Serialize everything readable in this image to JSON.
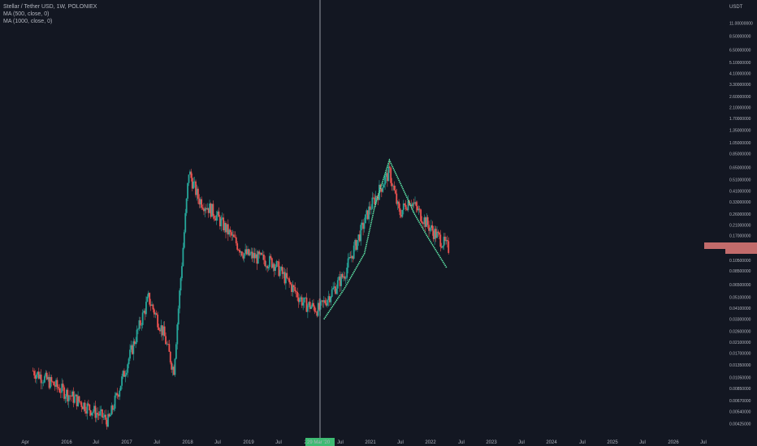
{
  "legend": {
    "symbol": "Stellar / Tether USD, 1W, POLONIEX",
    "ma1": "MA (500, close, 0)",
    "ma2": "MA (1000, close, 0)"
  },
  "price_axis": {
    "unit": "USDT",
    "ticks": [
      "11.00000000",
      "8.50000000",
      "6.50000000",
      "5.10000000",
      "4.10000000",
      "3.30000000",
      "2.60000000",
      "2.10000000",
      "1.70000000",
      "1.35000000",
      "1.05000000",
      "0.85000000",
      "0.65000000",
      "0.51000000",
      "0.41000000",
      "0.33000000",
      "0.26000000",
      "0.21000000",
      "0.17000000",
      "0.13500000",
      "0.10500000",
      "0.08500000",
      "0.06500000",
      "0.05100000",
      "0.04100000",
      "0.03300000",
      "0.02600000",
      "0.02100000",
      "0.01700000",
      "0.01350000",
      "0.01050000",
      "0.00850000",
      "0.00670000",
      "0.00540000",
      "0.00425000"
    ]
  },
  "time_axis": {
    "ticks": [
      "Apr",
      "2016",
      "Jul",
      "2017",
      "Jul",
      "2018",
      "Jul",
      "2019",
      "Jul",
      "2020",
      "Jul",
      "2021",
      "Jul",
      "2022",
      "Jul",
      "2023",
      "Jul",
      "2024",
      "Jul",
      "2025",
      "Jul",
      "2026",
      "Jul"
    ],
    "crosshair_label": "29 Mar '20"
  },
  "colors": {
    "background": "#131722",
    "up": "#26a69a",
    "down": "#ef5350",
    "ma": "#5ee6a8",
    "crosshair": "#9598a1"
  },
  "chart_data": {
    "type": "candlestick",
    "title": "Stellar / Tether USD, 1W, POLONIEX",
    "y_scale": "log",
    "ylim": [
      0.0039,
      13
    ],
    "x_range": [
      "2015-03",
      "2026-09"
    ],
    "series": [
      {
        "name": "MA (500, close, 0)",
        "type": "line",
        "points": [
          [
            "2020-03-30",
            0.033
          ],
          [
            "2020-08-01",
            0.06
          ],
          [
            "2020-12-01",
            0.12
          ],
          [
            "2021-02-01",
            0.3
          ],
          [
            "2021-05-01",
            0.75
          ],
          [
            "2021-07-15",
            0.45
          ],
          [
            "2021-10-01",
            0.26
          ],
          [
            "2021-12-15",
            0.17
          ],
          [
            "2022-04-15",
            0.09
          ]
        ]
      },
      {
        "name": "MA (1000, close, 0)",
        "type": "line",
        "points": []
      }
    ],
    "ohlc_samples": [
      {
        "date": "2015-06",
        "close": 0.012
      },
      {
        "date": "2016-09",
        "close": 0.0045
      },
      {
        "date": "2017-05",
        "close": 0.05
      },
      {
        "date": "2017-08",
        "close": 0.025
      },
      {
        "date": "2017-10",
        "close": 0.012
      },
      {
        "date": "2018-01",
        "close": 0.6
      },
      {
        "date": "2018-03",
        "close": 0.35
      },
      {
        "date": "2018-06",
        "close": 0.27
      },
      {
        "date": "2018-12",
        "close": 0.12
      },
      {
        "date": "2019-06",
        "close": 0.1
      },
      {
        "date": "2019-12",
        "close": 0.045
      },
      {
        "date": "2020-03",
        "close": 0.04
      },
      {
        "date": "2020-08",
        "close": 0.08
      },
      {
        "date": "2021-01",
        "close": 0.29
      },
      {
        "date": "2021-05",
        "close": 0.6
      },
      {
        "date": "2021-07",
        "close": 0.26
      },
      {
        "date": "2021-09",
        "close": 0.35
      },
      {
        "date": "2022-01",
        "close": 0.2
      },
      {
        "date": "2022-05",
        "close": 0.13
      }
    ]
  }
}
